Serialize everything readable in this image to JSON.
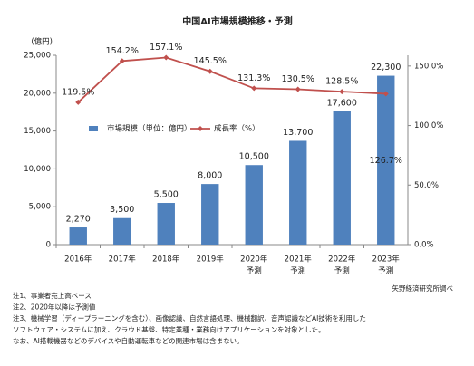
{
  "chart_data": {
    "type": "bar_line",
    "title": "中国AI市場規模推移・予測",
    "y_unit_label": "(億円)",
    "categories": [
      "2016年",
      "2017年",
      "2018年",
      "2019年",
      "2020年",
      "2021年",
      "2022年",
      "2023年"
    ],
    "category_notes": [
      null,
      null,
      null,
      null,
      "予測",
      "予測",
      "予測",
      "予測"
    ],
    "series": [
      {
        "name": "市場規模（単位：億円）",
        "type": "bar",
        "color": "#4f81bd",
        "values": [
          2270,
          3500,
          5500,
          8000,
          10500,
          13700,
          17600,
          22300
        ],
        "value_labels": [
          "2,270",
          "3,500",
          "5,500",
          "8,000",
          "10,500",
          "13,700",
          "17,600",
          "22,300"
        ]
      },
      {
        "name": "成長率（%）",
        "type": "line",
        "axis": "y2",
        "color": "#c0504d",
        "values": [
          119.5,
          154.2,
          157.1,
          145.5,
          131.3,
          130.5,
          128.5,
          126.7
        ],
        "value_labels": [
          "119.5%",
          "154.2%",
          "157.1%",
          "145.5%",
          "131.3%",
          "130.5%",
          "128.5%",
          "126.7%"
        ]
      }
    ],
    "ylim": [
      0,
      25000
    ],
    "yticks": [
      0,
      {
        "value": 5000,
        "label": "5,000"
      },
      {
        "value": 10000,
        "label": "10,000"
      },
      {
        "value": 15000,
        "label": "15,000"
      },
      {
        "value": 20000,
        "label": "20,000"
      },
      {
        "value": 25000,
        "label": "25,000"
      }
    ],
    "y2lim": [
      0,
      159
    ],
    "y2ticks": [
      {
        "value": 0,
        "label": "0.0%"
      },
      {
        "value": 50,
        "label": "50.0%"
      },
      {
        "value": 100,
        "label": "100.0%"
      },
      {
        "value": 150,
        "label": "150.0%"
      }
    ],
    "grid": false,
    "legend": "center-left",
    "source": "矢野経済研究所調べ",
    "notes": [
      "注1、事業者売上高ベース",
      "注2、2020年以降は予測値",
      "注3、機械学習（ディープラーニングを含む）、画像認識、自然言語処理、機械翻訳、音声認識などAI技術を利用した",
      "ソフトウェア・システムに加え、クラウド基盤、特定業種・業務向けアプリケーションを対象とした。",
      "なお、AI搭載機器などのデバイスや自動運転車などの関連市場は含まない。"
    ]
  }
}
